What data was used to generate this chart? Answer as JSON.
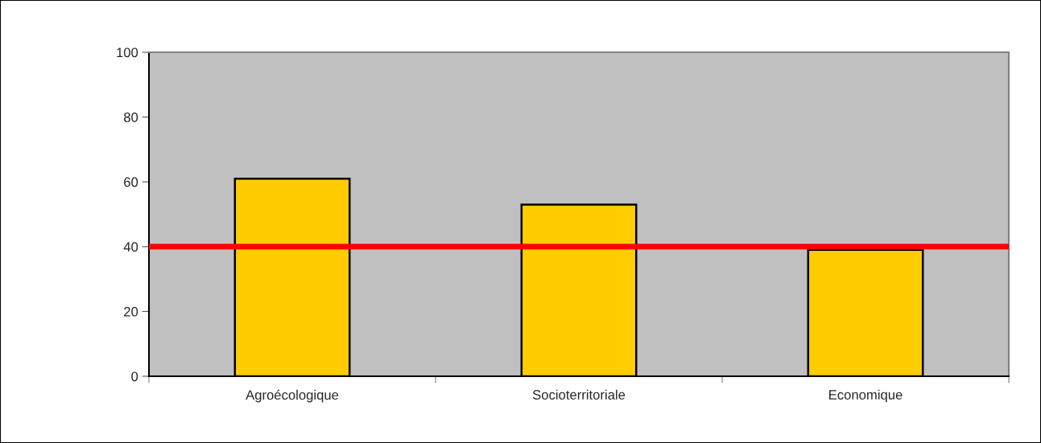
{
  "chart_data": {
    "type": "bar",
    "categories": [
      "Agroécologique",
      "Socioterritoriale",
      "Economique"
    ],
    "values": [
      61,
      53,
      39
    ],
    "color": "#ffcc00",
    "ylim": [
      0,
      100
    ],
    "yticks": [
      0,
      20,
      40,
      60,
      80,
      100
    ],
    "grid": false,
    "legend": false,
    "ref_lines": [
      {
        "axis": "y",
        "value": 40,
        "color": "#ff0000"
      }
    ]
  }
}
